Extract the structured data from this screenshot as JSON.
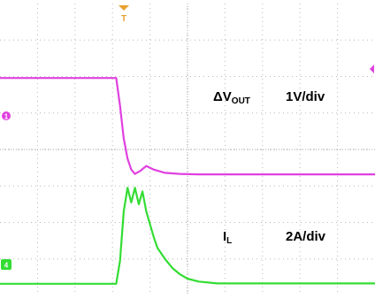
{
  "chart_data": {
    "type": "line",
    "title": "",
    "grid": true,
    "x_divisions": 10,
    "y_divisions": 8,
    "trigger_marker": "T",
    "series": [
      {
        "name": "ΔVOUT",
        "label_main": "ΔV",
        "label_sub": "OUT",
        "scale": "1V/div",
        "channel_marker": "1",
        "color": "#e040e0",
        "x": [
          0,
          3.1,
          3.2,
          3.3,
          3.4,
          3.5,
          3.6,
          3.75,
          3.9,
          4.1,
          4.4,
          4.8,
          5.3,
          10
        ],
        "y": [
          5.96,
          5.96,
          5.2,
          4.3,
          3.75,
          3.45,
          3.33,
          3.42,
          3.55,
          3.45,
          3.36,
          3.33,
          3.32,
          3.32
        ]
      },
      {
        "name": "IL",
        "label_main": "I",
        "label_sub": "L",
        "scale": "2A/div",
        "channel_marker": "4",
        "color": "#33dd33",
        "x": [
          0,
          3.1,
          3.2,
          3.3,
          3.4,
          3.5,
          3.6,
          3.7,
          3.8,
          3.9,
          4.0,
          4.1,
          4.2,
          4.4,
          4.6,
          4.8,
          5.0,
          5.3,
          5.8,
          10
        ],
        "y": [
          0.32,
          0.32,
          0.95,
          2.3,
          2.95,
          2.55,
          2.95,
          2.5,
          2.85,
          2.3,
          1.95,
          1.6,
          1.3,
          1.0,
          0.75,
          0.58,
          0.46,
          0.38,
          0.33,
          0.33
        ]
      }
    ],
    "side_markers": [
      {
        "text": "1",
        "color": "#e040e0",
        "level": 5.1,
        "side": "right"
      }
    ]
  }
}
